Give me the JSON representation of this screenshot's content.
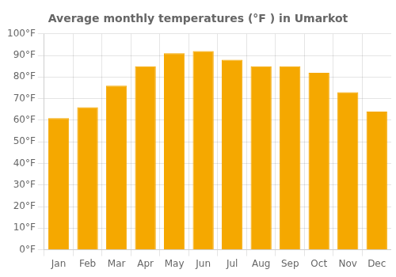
{
  "chart_data": {
    "type": "bar",
    "title": "Average monthly temperatures (°F ) in Umarkot",
    "categories": [
      "Jan",
      "Feb",
      "Mar",
      "Apr",
      "May",
      "Jun",
      "Jul",
      "Aug",
      "Sep",
      "Oct",
      "Nov",
      "Dec"
    ],
    "values": [
      61,
      66,
      76,
      85,
      91,
      92,
      88,
      85,
      85,
      82,
      73,
      64
    ],
    "color": "#F5A800",
    "ylim": [
      0,
      100
    ],
    "yticks": [
      {
        "value": 0,
        "label": "0°F"
      },
      {
        "value": 10,
        "label": "10°F"
      },
      {
        "value": 20,
        "label": "20°F"
      },
      {
        "value": 30,
        "label": "30°F"
      },
      {
        "value": 40,
        "label": "40°F"
      },
      {
        "value": 50,
        "label": "50°F"
      },
      {
        "value": 60,
        "label": "60°F"
      },
      {
        "value": 70,
        "label": "70°F"
      },
      {
        "value": 80,
        "label": "80°F"
      },
      {
        "value": 90,
        "label": "90°F"
      },
      {
        "value": 100,
        "label": "100°F"
      }
    ],
    "grid": true
  }
}
